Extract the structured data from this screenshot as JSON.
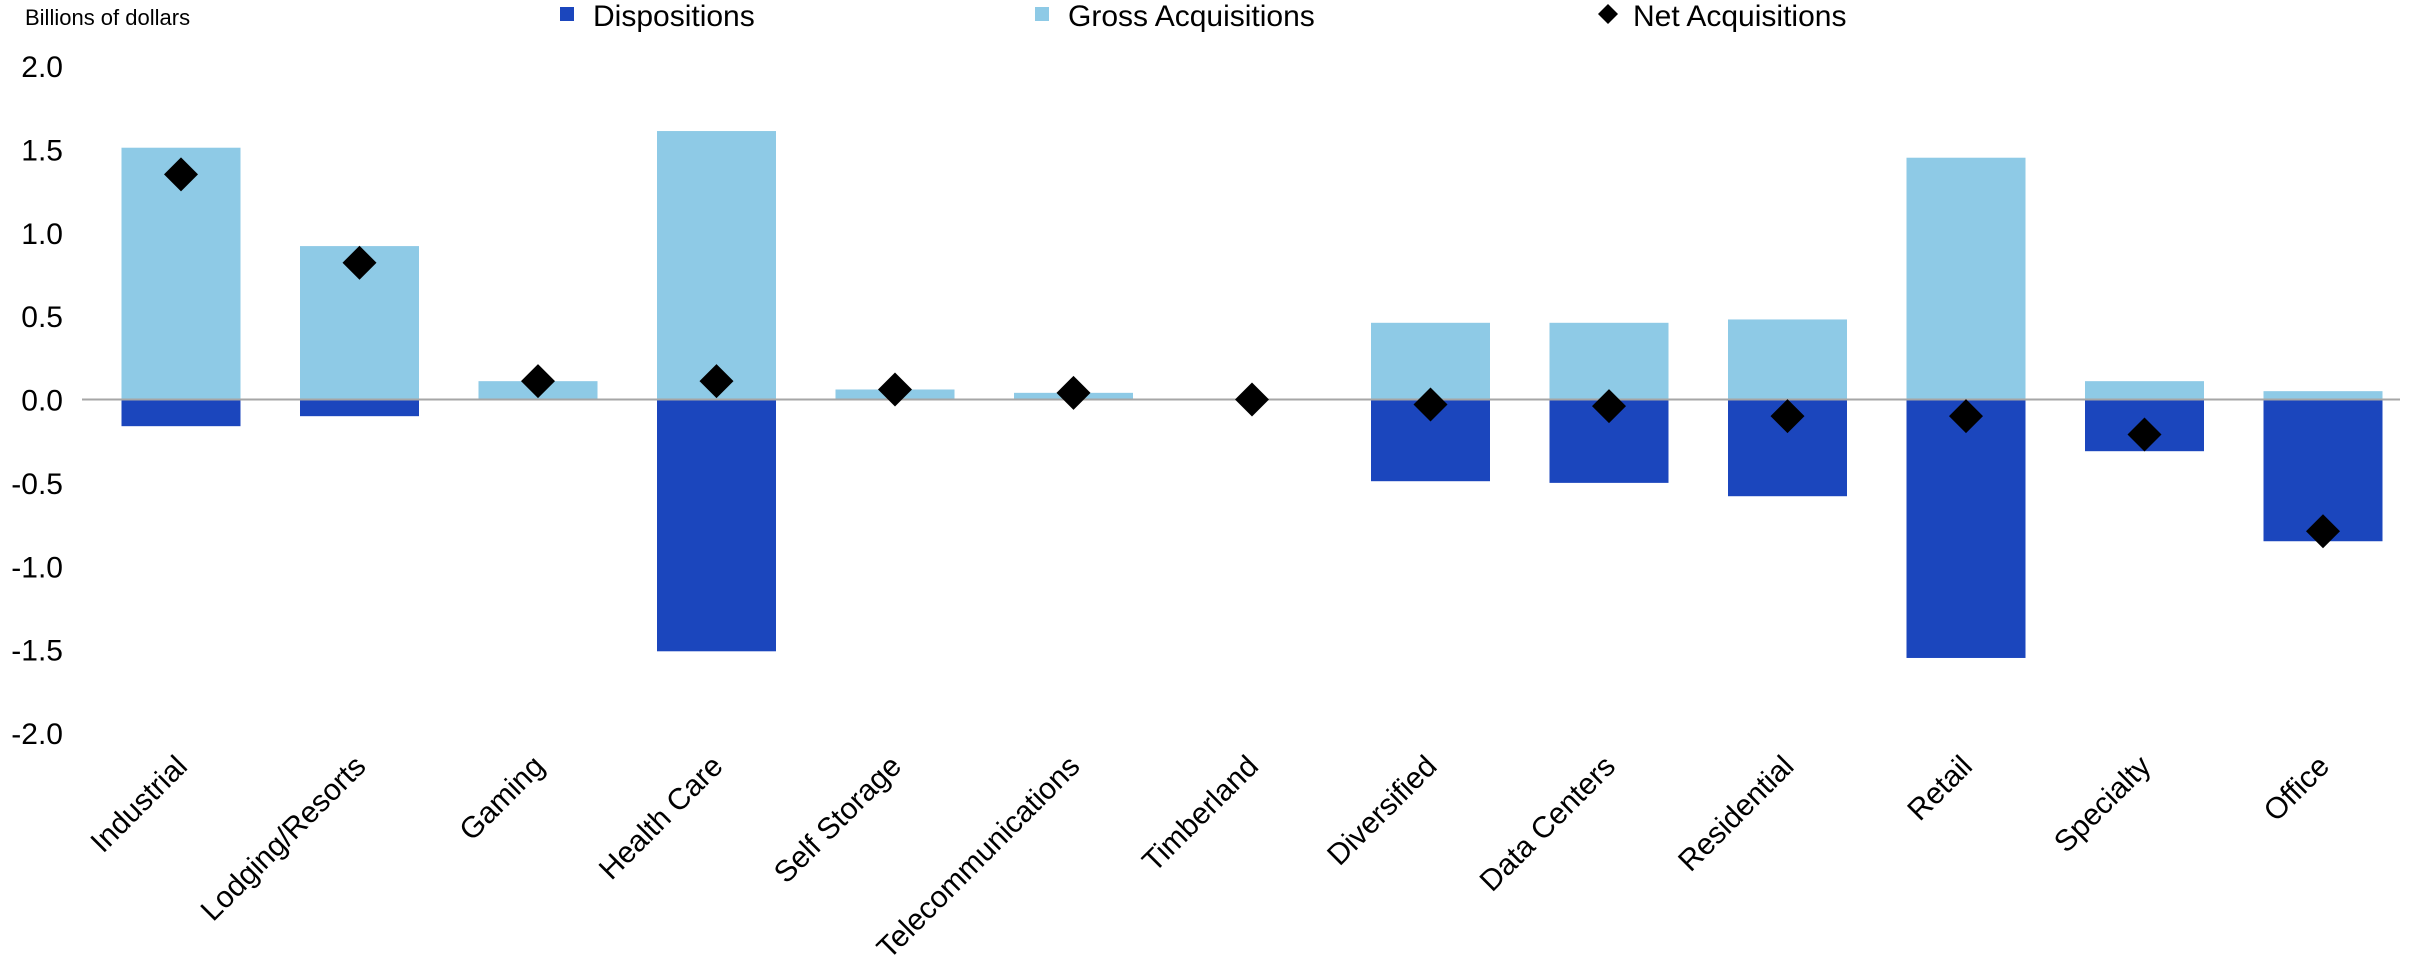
{
  "chart_data": {
    "type": "bar",
    "ylabel": "Billions of dollars",
    "ylim": [
      -2.0,
      2.0
    ],
    "yticks": [
      "2.0",
      "1.5",
      "1.0",
      "0.5",
      "0.0",
      "-0.5",
      "-1.0",
      "-1.5",
      "-2.0"
    ],
    "ytick_values": [
      2.0,
      1.5,
      1.0,
      0.5,
      0.0,
      -0.5,
      -1.0,
      -1.5,
      -2.0
    ],
    "legend_position": "top",
    "categories": [
      "Industrial",
      "Lodging/Resorts",
      "Gaming",
      "Health Care",
      "Self Storage",
      "Telecommunications",
      "Timberland",
      "Diversified",
      "Data Centers",
      "Residential",
      "Retail",
      "Specialty",
      "Office"
    ],
    "series": [
      {
        "name": "Dispositions",
        "kind": "bar",
        "color": "#1b46bd",
        "values": [
          -0.16,
          -0.1,
          0.0,
          -1.51,
          0.0,
          0.0,
          0.0,
          -0.49,
          -0.5,
          -0.58,
          -1.55,
          -0.31,
          -0.85
        ]
      },
      {
        "name": "Gross Acquisitions",
        "kind": "bar",
        "color": "#8ecae6",
        "values": [
          1.51,
          0.92,
          0.11,
          1.61,
          0.06,
          0.04,
          0.0,
          0.46,
          0.46,
          0.48,
          1.45,
          0.11,
          0.05
        ]
      },
      {
        "name": "Net Acquisitions",
        "kind": "marker",
        "color": "#000000",
        "values": [
          1.35,
          0.82,
          0.11,
          0.11,
          0.06,
          0.04,
          0.0,
          -0.03,
          -0.04,
          -0.1,
          -0.1,
          -0.21,
          -0.79
        ]
      }
    ]
  }
}
